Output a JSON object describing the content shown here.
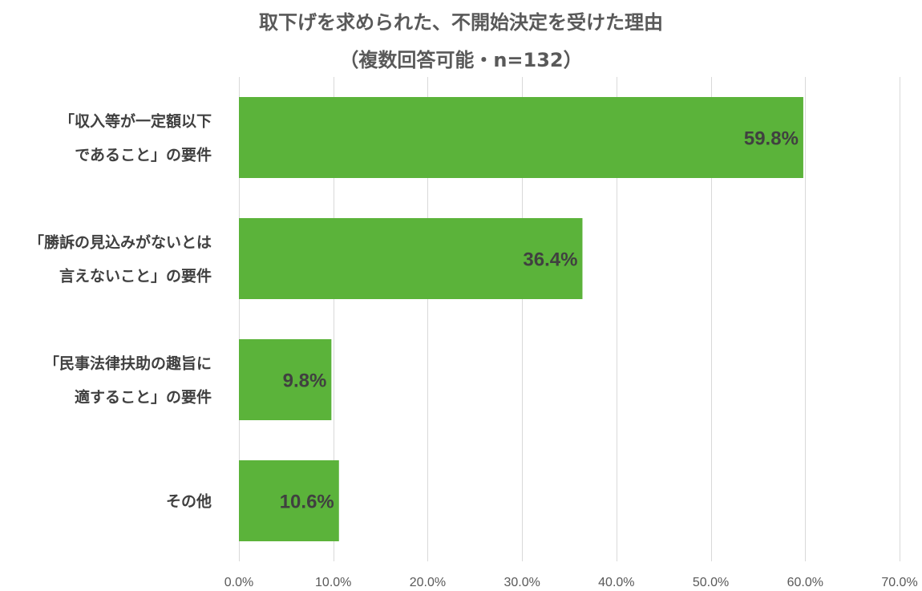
{
  "chart_data": {
    "type": "bar",
    "orientation": "horizontal",
    "title_lines": [
      "取下げを求められた、不開始決定を受けた理由",
      "（複数回答可能・n=132）"
    ],
    "categories": [
      [
        "「収入等が一定額以下",
        "であること」の要件"
      ],
      [
        "「勝訴の見込みがないとは",
        "言えないこと」の要件"
      ],
      [
        "「民事法律扶助の趣旨に",
        "適すること」の要件"
      ],
      [
        "その他"
      ]
    ],
    "values": [
      59.8,
      36.4,
      9.8,
      10.6
    ],
    "value_labels": [
      "59.8%",
      "36.4%",
      "9.8%",
      "10.6%"
    ],
    "xlim": [
      0,
      70
    ],
    "x_ticks": [
      0,
      10,
      20,
      30,
      40,
      50,
      60,
      70
    ],
    "x_tick_labels": [
      "0.0%",
      "10.0%",
      "20.0%",
      "30.0%",
      "40.0%",
      "50.0%",
      "60.0%",
      "70.0%"
    ],
    "grid": true,
    "legend": "none",
    "bar_color": "#5bb33a"
  }
}
